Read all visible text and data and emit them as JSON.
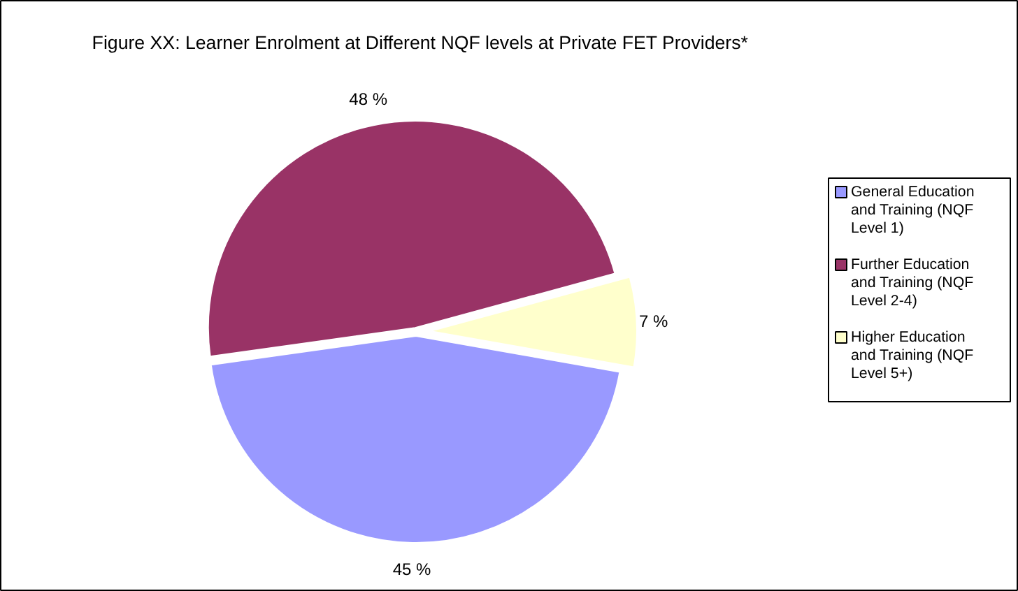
{
  "chart_data": {
    "type": "pie",
    "title": "Figure XX: Learner Enrolment at Different NQF levels at Private FET Providers*",
    "categories": [
      "General Education and Training (NQF Level 1)",
      "Further Education and Training (NQF Level 2-4)",
      "Higher Education and Training (NQF Level 5+)"
    ],
    "values": [
      45,
      48,
      7
    ],
    "value_labels": [
      "45 %",
      "48 %",
      "7 %"
    ],
    "colors": [
      "#9999ff",
      "#993366",
      "#ffffcc"
    ],
    "legend": "right"
  }
}
